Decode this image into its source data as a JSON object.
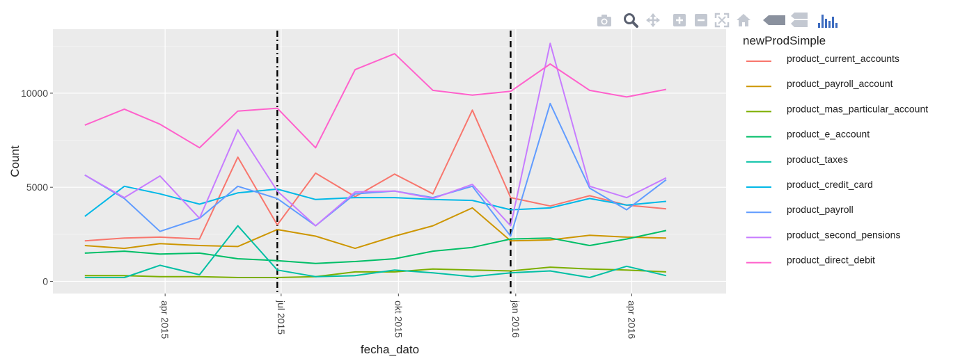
{
  "modebar": {
    "buttons": [
      {
        "name": "camera-icon",
        "color": "#c3c8d1"
      },
      {
        "name": "zoom-icon",
        "color": "#5a6070"
      },
      {
        "name": "pan-icon",
        "color": "#c3c8d1"
      },
      {
        "name": "zoom-in-icon",
        "color": "#c3c8d1"
      },
      {
        "name": "zoom-out-icon",
        "color": "#c3c8d1"
      },
      {
        "name": "autoscale-icon",
        "color": "#c3c8d1"
      },
      {
        "name": "home-icon",
        "color": "#c3c8d1"
      },
      {
        "name": "hover-closest-icon",
        "color": "#8a919e"
      },
      {
        "name": "hover-compare-icon",
        "color": "#c3c8d1"
      },
      {
        "name": "plotly-logo-icon",
        "color": "#3d6cc0"
      }
    ]
  },
  "chart_data": {
    "type": "line",
    "xlabel": "fecha_dato",
    "ylabel": "Count",
    "x": [
      "2015-01-28",
      "2015-02-28",
      "2015-03-28",
      "2015-04-28",
      "2015-05-28",
      "2015-06-28",
      "2015-07-28",
      "2015-08-28",
      "2015-09-28",
      "2015-10-28",
      "2015-11-28",
      "2015-12-28",
      "2016-01-28",
      "2016-02-28",
      "2016-03-28",
      "2016-04-28",
      "2016-05-28"
    ],
    "xlim": [
      "2015-01-03",
      "2016-06-14"
    ],
    "x_ticks": [
      {
        "date": "2015-04-01",
        "label": "apr 2015"
      },
      {
        "date": "2015-07-01",
        "label": "jul 2015"
      },
      {
        "date": "2015-10-01",
        "label": "okt 2015"
      },
      {
        "date": "2016-01-01",
        "label": "jan 2016"
      },
      {
        "date": "2016-04-01",
        "label": "apr 2016"
      }
    ],
    "ylim": [
      -650,
      13400
    ],
    "y_ticks": [
      {
        "value": 0,
        "label": "0"
      },
      {
        "value": 5000,
        "label": "5000"
      },
      {
        "value": 10000,
        "label": "10000"
      }
    ],
    "grid": true,
    "legend_title": "newProdSimple",
    "legend_position": "right",
    "vlines": [
      {
        "date": "2015-06-28",
        "style": "dashdot"
      },
      {
        "date": "2015-12-28",
        "style": "dash"
      }
    ],
    "series": [
      {
        "name": "product_current_accounts",
        "color": "#F8766D",
        "values": [
          2150,
          2300,
          2350,
          2250,
          6600,
          3000,
          5750,
          4500,
          5700,
          4650,
          9100,
          4450,
          4000,
          4550,
          4050,
          3850,
          null
        ]
      },
      {
        "name": "product_payroll_account",
        "color": "#CD9600",
        "values": [
          1900,
          1750,
          2000,
          1900,
          1850,
          2750,
          2400,
          1750,
          2400,
          2950,
          3900,
          2150,
          2200,
          2450,
          2350,
          2300,
          null
        ]
      },
      {
        "name": "product_mas_particular_account",
        "color": "#7CAE00",
        "values": [
          300,
          300,
          250,
          250,
          200,
          200,
          250,
          500,
          500,
          650,
          600,
          550,
          750,
          650,
          600,
          500,
          null
        ]
      },
      {
        "name": "product_e_account",
        "color": "#00BE67",
        "values": [
          1500,
          1600,
          1450,
          1500,
          1200,
          1100,
          950,
          1050,
          1200,
          1600,
          1800,
          2250,
          2300,
          1900,
          2250,
          2700,
          null
        ]
      },
      {
        "name": "product_taxes",
        "color": "#00BFA4",
        "values": [
          200,
          200,
          850,
          350,
          2950,
          600,
          250,
          300,
          600,
          450,
          250,
          450,
          550,
          200,
          800,
          300,
          null
        ]
      },
      {
        "name": "product_credit_card",
        "color": "#00B8E7",
        "values": [
          3450,
          5050,
          4650,
          4100,
          4700,
          4900,
          4350,
          4450,
          4450,
          4350,
          4300,
          3800,
          3900,
          4400,
          4050,
          4250,
          null
        ]
      },
      {
        "name": "product_payroll",
        "color": "#619CFF",
        "values": [
          5650,
          4400,
          2650,
          3350,
          5050,
          4400,
          2950,
          4650,
          4800,
          4450,
          5050,
          2400,
          9450,
          4950,
          3800,
          5400,
          null
        ]
      },
      {
        "name": "product_second_pensions",
        "color": "#C77CFF",
        "values": [
          5650,
          4450,
          5600,
          3350,
          8050,
          4800,
          2950,
          4750,
          4800,
          4400,
          5150,
          2950,
          12650,
          5050,
          4450,
          5500,
          null
        ]
      },
      {
        "name": "product_direct_debit",
        "color": "#FF61CC",
        "values": [
          8300,
          9150,
          8350,
          7100,
          9050,
          9200,
          7100,
          11250,
          12100,
          10150,
          9900,
          10100,
          11550,
          10150,
          9800,
          10200,
          null
        ]
      }
    ]
  }
}
